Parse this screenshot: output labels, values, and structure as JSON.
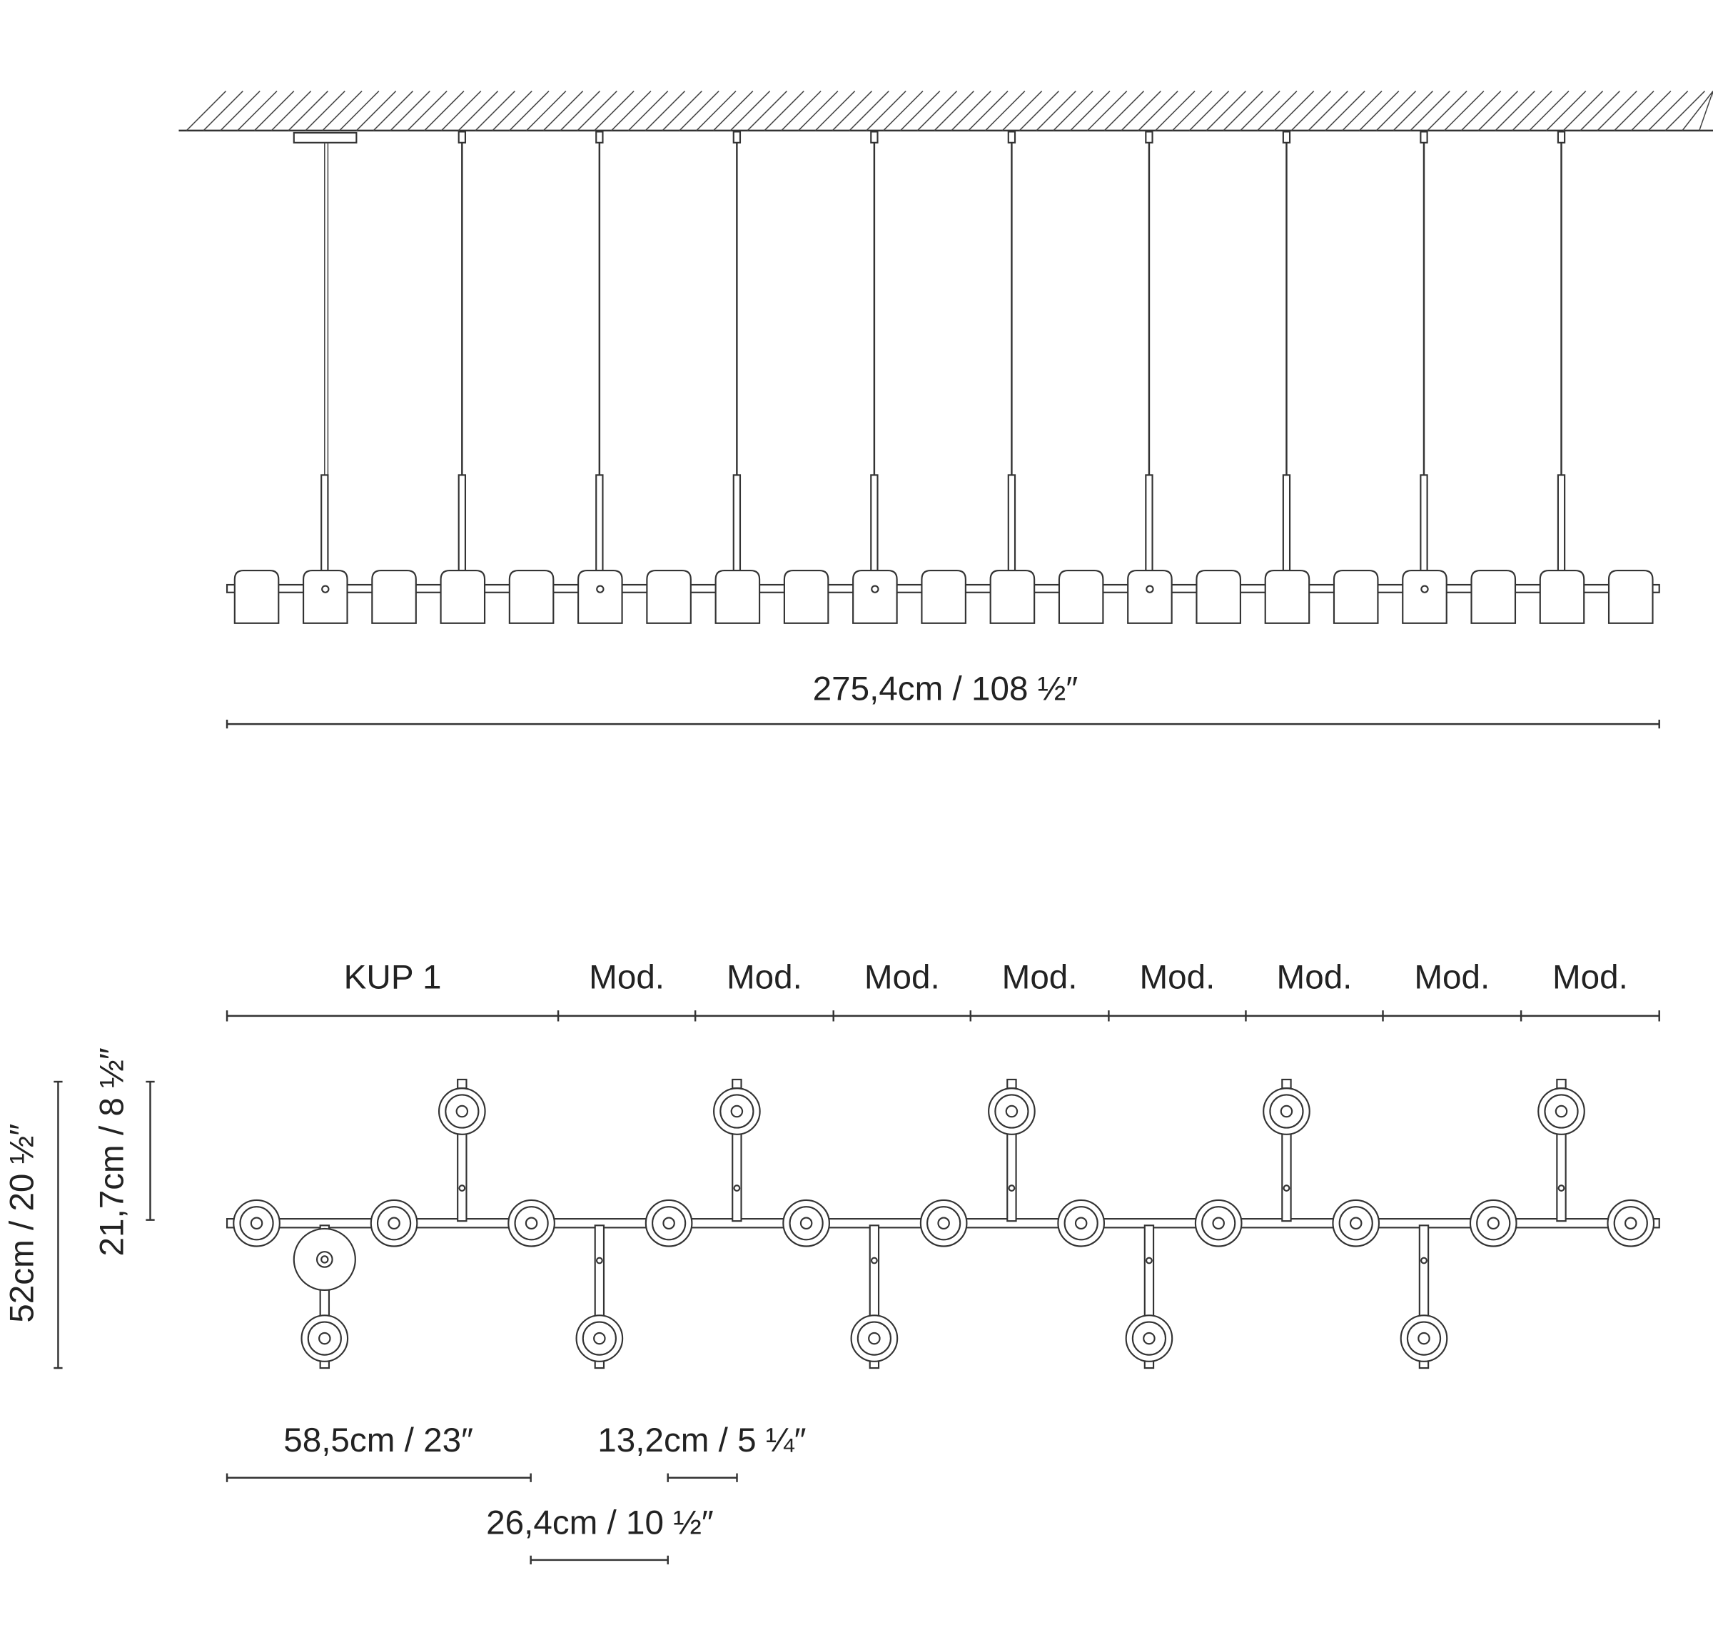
{
  "elevation": {
    "total_width": "275,4cm / 108 ½″"
  },
  "plan": {
    "modules": [
      "KUP 1",
      "Mod.",
      "Mod.",
      "Mod.",
      "Mod.",
      "Mod.",
      "Mod.",
      "Mod.",
      "Mod."
    ],
    "depth_total": "52cm / 20 ½″",
    "depth_arm": "21,7cm / 8 ½″",
    "kup_width": "58,5cm / 23″",
    "arm_offset": "13,2cm / 5 ¼″",
    "module_width": "26,4cm / 10 ½″"
  }
}
